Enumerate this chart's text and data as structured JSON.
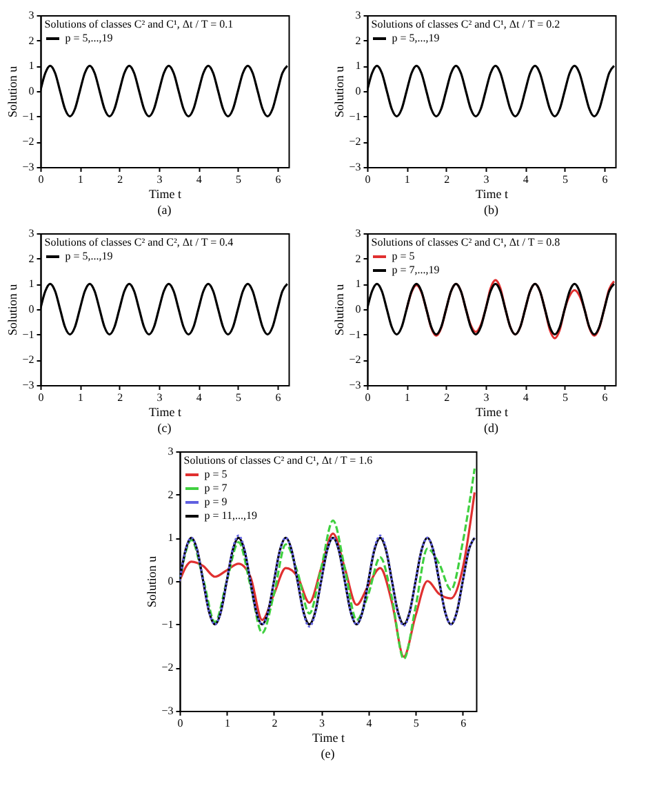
{
  "chart_data": [
    {
      "type": "line",
      "legend_title": "Solutions of classes C² and C¹,   Δt / T = 0.1",
      "xlabel": "Time t",
      "ylabel": "Solution u",
      "annotations": [
        "(a)"
      ],
      "legend": "top left",
      "xlim": [
        0,
        6.28
      ],
      "ylim": [
        -3,
        3
      ],
      "xticks": [
        0,
        1,
        2,
        3,
        4,
        5,
        6
      ],
      "yticks": [
        -3,
        -2,
        -1,
        0,
        1,
        2,
        3
      ],
      "x": [
        0,
        0.125,
        0.25,
        0.375,
        0.5,
        0.625,
        0.75,
        0.875,
        1,
        1.125,
        1.25,
        1.375,
        1.5,
        1.625,
        1.75,
        1.875,
        2,
        2.125,
        2.25,
        2.375,
        2.5,
        2.625,
        2.75,
        2.875,
        3,
        3.125,
        3.25,
        3.375,
        3.5,
        3.625,
        3.75,
        3.875,
        4,
        4.125,
        4.25,
        4.375,
        4.5,
        4.625,
        4.75,
        4.875,
        5,
        5.125,
        5.25,
        5.375,
        5.5,
        5.625,
        5.75,
        5.875,
        6,
        6.125,
        6.25
      ],
      "series": [
        {
          "name": "p = 5,...,19",
          "color": "#000000",
          "values": [
            0,
            0.71,
            1,
            0.71,
            0,
            -0.71,
            -1,
            -0.71,
            0,
            0.71,
            1,
            0.71,
            0,
            -0.71,
            -1,
            -0.71,
            0,
            0.71,
            1,
            0.71,
            0,
            -0.71,
            -1,
            -0.71,
            0,
            0.71,
            1,
            0.71,
            0,
            -0.71,
            -1,
            -0.71,
            0,
            0.71,
            1,
            0.71,
            0,
            -0.71,
            -1,
            -0.71,
            0,
            0.71,
            1,
            0.71,
            0,
            -0.71,
            -1,
            -0.71,
            0,
            0.71,
            1
          ]
        }
      ]
    },
    {
      "type": "line",
      "legend_title": "Solutions of classes C² and C¹,   Δt / T = 0.2",
      "xlabel": "Time t",
      "ylabel": "Solution u",
      "annotations": [
        "(b)"
      ],
      "legend": "top left",
      "xlim": [
        0,
        6.28
      ],
      "ylim": [
        -3,
        3
      ],
      "xticks": [
        0,
        1,
        2,
        3,
        4,
        5,
        6
      ],
      "yticks": [
        -3,
        -2,
        -1,
        0,
        1,
        2,
        3
      ],
      "x": [
        0,
        0.125,
        0.25,
        0.375,
        0.5,
        0.625,
        0.75,
        0.875,
        1,
        1.125,
        1.25,
        1.375,
        1.5,
        1.625,
        1.75,
        1.875,
        2,
        2.125,
        2.25,
        2.375,
        2.5,
        2.625,
        2.75,
        2.875,
        3,
        3.125,
        3.25,
        3.375,
        3.5,
        3.625,
        3.75,
        3.875,
        4,
        4.125,
        4.25,
        4.375,
        4.5,
        4.625,
        4.75,
        4.875,
        5,
        5.125,
        5.25,
        5.375,
        5.5,
        5.625,
        5.75,
        5.875,
        6,
        6.125,
        6.25
      ],
      "series": [
        {
          "name": "p = 5,...,19",
          "color": "#000000",
          "values": [
            0,
            0.71,
            1,
            0.71,
            0,
            -0.71,
            -1,
            -0.71,
            0,
            0.71,
            1,
            0.71,
            0,
            -0.71,
            -1,
            -0.71,
            0,
            0.71,
            1,
            0.71,
            0,
            -0.71,
            -1,
            -0.71,
            0,
            0.71,
            1,
            0.71,
            0,
            -0.71,
            -1,
            -0.71,
            0,
            0.71,
            1,
            0.71,
            0,
            -0.71,
            -1,
            -0.71,
            0,
            0.71,
            1,
            0.71,
            0,
            -0.71,
            -1,
            -0.71,
            0,
            0.71,
            1
          ]
        }
      ]
    },
    {
      "type": "line",
      "legend_title": "Solutions of classes C² and C²,   Δt / T = 0.4",
      "xlabel": "Time t",
      "ylabel": "Solution u",
      "annotations": [
        "(c)"
      ],
      "legend": "top left",
      "xlim": [
        0,
        6.28
      ],
      "ylim": [
        -3,
        3
      ],
      "xticks": [
        0,
        1,
        2,
        3,
        4,
        5,
        6
      ],
      "yticks": [
        -3,
        -2,
        -1,
        0,
        1,
        2,
        3
      ],
      "x": [
        0,
        0.125,
        0.25,
        0.375,
        0.5,
        0.625,
        0.75,
        0.875,
        1,
        1.125,
        1.25,
        1.375,
        1.5,
        1.625,
        1.75,
        1.875,
        2,
        2.125,
        2.25,
        2.375,
        2.5,
        2.625,
        2.75,
        2.875,
        3,
        3.125,
        3.25,
        3.375,
        3.5,
        3.625,
        3.75,
        3.875,
        4,
        4.125,
        4.25,
        4.375,
        4.5,
        4.625,
        4.75,
        4.875,
        5,
        5.125,
        5.25,
        5.375,
        5.5,
        5.625,
        5.75,
        5.875,
        6,
        6.125,
        6.25
      ],
      "series": [
        {
          "name": "p = 5,...,19",
          "color": "#000000",
          "values": [
            0,
            0.71,
            1,
            0.71,
            0,
            -0.71,
            -1,
            -0.71,
            0,
            0.71,
            1,
            0.71,
            0,
            -0.71,
            -1,
            -0.71,
            0,
            0.71,
            1,
            0.71,
            0,
            -0.71,
            -1,
            -0.71,
            0,
            0.71,
            1,
            0.71,
            0,
            -0.71,
            -1,
            -0.71,
            0,
            0.71,
            1,
            0.71,
            0,
            -0.71,
            -1,
            -0.71,
            0,
            0.71,
            1,
            0.71,
            0,
            -0.71,
            -1,
            -0.71,
            0,
            0.71,
            1
          ]
        }
      ]
    },
    {
      "type": "line",
      "legend_title": "Solutions of classes C² and C¹,   Δt / T = 0.8",
      "xlabel": "Time t",
      "ylabel": "Solution u",
      "annotations": [
        "(d)"
      ],
      "legend": "top left",
      "xlim": [
        0,
        6.28
      ],
      "ylim": [
        -3,
        3
      ],
      "xticks": [
        0,
        1,
        2,
        3,
        4,
        5,
        6
      ],
      "yticks": [
        -3,
        -2,
        -1,
        0,
        1,
        2,
        3
      ],
      "x": [
        0,
        0.125,
        0.25,
        0.375,
        0.5,
        0.625,
        0.75,
        0.875,
        1,
        1.125,
        1.25,
        1.375,
        1.5,
        1.625,
        1.75,
        1.875,
        2,
        2.125,
        2.25,
        2.375,
        2.5,
        2.625,
        2.75,
        2.875,
        3,
        3.125,
        3.25,
        3.375,
        3.5,
        3.625,
        3.75,
        3.875,
        4,
        4.125,
        4.25,
        4.375,
        4.5,
        4.625,
        4.75,
        4.875,
        5,
        5.125,
        5.25,
        5.375,
        5.5,
        5.625,
        5.75,
        5.875,
        6,
        6.125,
        6.25
      ],
      "series": [
        {
          "name": "p = 5",
          "color": "#e03030",
          "values": [
            null,
            null,
            null,
            null,
            null,
            null,
            null,
            null,
            0,
            0.67,
            0.95,
            0.67,
            0,
            -0.74,
            -1.05,
            -0.74,
            0,
            0.71,
            1,
            0.71,
            0,
            -0.64,
            -0.9,
            -0.64,
            0,
            0.82,
            1.15,
            0.82,
            0,
            -0.71,
            -1,
            -0.71,
            0,
            0.71,
            1,
            0.71,
            0,
            -0.82,
            -1.15,
            -0.82,
            0,
            0.53,
            0.75,
            0.53,
            0,
            -0.74,
            -1.05,
            -0.74,
            0,
            0.78,
            1.1
          ]
        },
        {
          "name": "p = 7,...,19",
          "color": "#000000",
          "values": [
            0,
            0.71,
            1,
            0.71,
            0,
            -0.71,
            -1,
            -0.71,
            0,
            0.71,
            1,
            0.71,
            0,
            -0.71,
            -1,
            -0.71,
            0,
            0.71,
            1,
            0.71,
            0,
            -0.71,
            -1,
            -0.71,
            0,
            0.71,
            1,
            0.71,
            0,
            -0.71,
            -1,
            -0.71,
            0,
            0.71,
            1,
            0.71,
            0,
            -0.71,
            -1,
            -0.71,
            0,
            0.71,
            1,
            0.71,
            0,
            -0.71,
            -1,
            -0.71,
            0,
            0.71,
            1
          ]
        }
      ]
    },
    {
      "type": "line",
      "legend_title": "Solutions of classes C² and C¹,   Δt / T = 1.6",
      "xlabel": "Time t",
      "ylabel": "Solution u",
      "annotations": [
        "(e)"
      ],
      "legend": "top left",
      "xlim": [
        0,
        6.28
      ],
      "ylim": [
        -3,
        3
      ],
      "xticks": [
        0,
        1,
        2,
        3,
        4,
        5,
        6
      ],
      "yticks": [
        -3,
        -2,
        -1,
        0,
        1,
        2,
        3
      ],
      "x": [
        0,
        0.125,
        0.25,
        0.375,
        0.5,
        0.625,
        0.75,
        0.875,
        1,
        1.125,
        1.25,
        1.375,
        1.5,
        1.625,
        1.75,
        1.875,
        2,
        2.125,
        2.25,
        2.375,
        2.5,
        2.625,
        2.75,
        2.875,
        3,
        3.125,
        3.25,
        3.375,
        3.5,
        3.625,
        3.75,
        3.875,
        4,
        4.125,
        4.25,
        4.375,
        4.5,
        4.625,
        4.75,
        4.875,
        5,
        5.125,
        5.25,
        5.375,
        5.5,
        5.625,
        5.75,
        5.875,
        6,
        6.125,
        6.25
      ],
      "series": [
        {
          "name": "p = 5",
          "color": "#e03030",
          "line_style": "solid",
          "x": [
            0,
            0.25,
            0.5,
            0.75,
            1,
            1.25,
            1.5,
            1.75,
            2,
            2.25,
            2.5,
            2.75,
            3,
            3.25,
            3.5,
            3.75,
            4,
            4.25,
            4.5,
            4.75,
            5,
            5.25,
            5.5,
            5.75,
            6,
            6.25
          ],
          "values": [
            0,
            0.45,
            0.35,
            0.1,
            0.25,
            0.4,
            0.1,
            -0.9,
            -0.3,
            0.3,
            0.1,
            -0.5,
            0.3,
            1.1,
            0.3,
            -0.55,
            -0.1,
            0.3,
            -0.5,
            -1.75,
            -0.8,
            0,
            -0.3,
            -0.4,
            0.3,
            2.05
          ]
        },
        {
          "name": "p = 7",
          "color": "#40d040",
          "line_style": "dashed",
          "x": [
            0,
            0.25,
            0.5,
            0.75,
            1,
            1.25,
            1.5,
            1.75,
            2,
            2.25,
            2.5,
            2.75,
            3,
            3.25,
            3.5,
            3.75,
            4,
            4.25,
            4.5,
            4.75,
            5,
            5.25,
            5.5,
            5.75,
            6,
            6.25
          ],
          "values": [
            0,
            0.95,
            0.05,
            -0.95,
            0,
            0.9,
            -0.1,
            -1.2,
            -0.3,
            0.85,
            0.2,
            -0.75,
            0.3,
            1.4,
            0.3,
            -0.9,
            -0.3,
            0.55,
            -0.4,
            -1.8,
            -0.6,
            0.75,
            0.4,
            -0.2,
            0.9,
            2.6
          ]
        },
        {
          "name": "p = 9",
          "color": "#6060e0",
          "line_style": "dotted",
          "values": [
            0,
            0.71,
            1,
            0.71,
            0,
            -0.71,
            -1,
            -0.71,
            0,
            0.74,
            1.05,
            0.74,
            0,
            -0.71,
            -1,
            -0.71,
            0,
            0.71,
            1,
            0.71,
            0,
            -0.74,
            -1.05,
            -0.74,
            0,
            0.71,
            1,
            0.71,
            0,
            -0.71,
            -1,
            -0.71,
            0,
            0.74,
            1.05,
            0.74,
            0,
            -0.73,
            -1.03,
            -0.73,
            0,
            0.71,
            1,
            0.71,
            0,
            -0.71,
            -1,
            -0.71,
            0,
            0.71,
            1
          ]
        },
        {
          "name": "p = 11,...,19",
          "color": "#000000",
          "line_style": "solid",
          "values": [
            0,
            0.71,
            1,
            0.71,
            0,
            -0.71,
            -1,
            -0.71,
            0,
            0.71,
            1,
            0.71,
            0,
            -0.71,
            -1,
            -0.71,
            0,
            0.71,
            1,
            0.71,
            0,
            -0.71,
            -1,
            -0.71,
            0,
            0.71,
            1,
            0.71,
            0,
            -0.71,
            -1,
            -0.71,
            0,
            0.71,
            1,
            0.71,
            0,
            -0.71,
            -1,
            -0.71,
            0,
            0.71,
            1,
            0.71,
            0,
            -0.71,
            -1,
            -0.71,
            0,
            0.71,
            1
          ]
        }
      ]
    }
  ]
}
